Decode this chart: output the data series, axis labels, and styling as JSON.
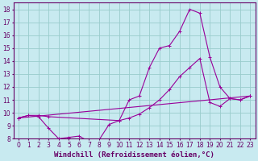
{
  "xlabel": "Windchill (Refroidissement éolien,°C)",
  "xlim": [
    -0.5,
    23.5
  ],
  "ylim": [
    8,
    18.5
  ],
  "xticks": [
    0,
    1,
    2,
    3,
    4,
    5,
    6,
    7,
    8,
    9,
    10,
    11,
    12,
    13,
    14,
    15,
    16,
    17,
    18,
    19,
    20,
    21,
    22,
    23
  ],
  "yticks": [
    8,
    9,
    10,
    11,
    12,
    13,
    14,
    15,
    16,
    17,
    18
  ],
  "line_color": "#990099",
  "bg_color": "#c8eaf0",
  "grid_color": "#99cccc",
  "lines": [
    {
      "x": [
        0,
        1,
        2,
        3,
        10,
        11,
        12,
        13,
        14,
        15,
        16,
        17,
        18,
        19,
        20,
        21,
        22,
        23
      ],
      "y": [
        9.6,
        9.8,
        9.8,
        9.7,
        9.4,
        11.0,
        11.3,
        13.5,
        15.0,
        15.2,
        16.3,
        18.0,
        17.7,
        14.3,
        12.0,
        11.1,
        11.0,
        11.3
      ]
    },
    {
      "x": [
        0,
        1,
        2,
        3,
        4,
        5,
        6,
        7,
        8,
        9,
        10,
        11,
        12,
        13,
        14,
        15,
        16,
        17,
        18,
        19,
        20,
        21,
        22,
        23
      ],
      "y": [
        9.6,
        9.8,
        9.7,
        8.8,
        8.0,
        8.1,
        8.2,
        7.8,
        7.9,
        9.1,
        9.4,
        9.6,
        9.9,
        10.4,
        11.0,
        11.8,
        12.8,
        13.5,
        14.2,
        10.8,
        10.5,
        11.1,
        11.0,
        11.3
      ]
    },
    {
      "x": [
        0,
        23
      ],
      "y": [
        9.6,
        11.3
      ]
    }
  ],
  "font_color": "#660066",
  "tick_fontsize": 5.5,
  "label_fontsize": 6.5
}
